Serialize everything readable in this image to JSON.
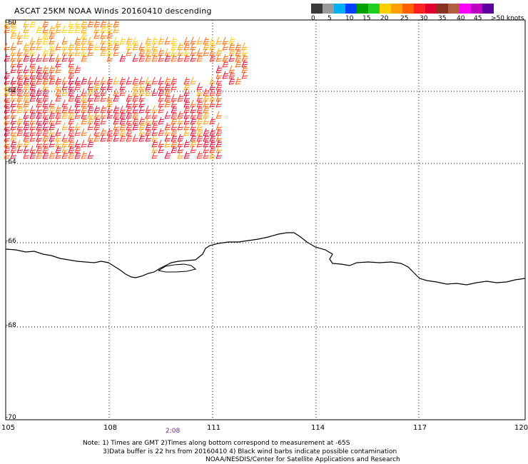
{
  "header": {
    "title": "ASCAT 25KM NOAA Winds 20160410 descending"
  },
  "color_scale": {
    "colors": [
      "#3a3a3a",
      "#9a9a9a",
      "#00b0f0",
      "#0040ff",
      "#00a000",
      "#20d020",
      "#ffd000",
      "#ffa000",
      "#ff6000",
      "#ff2020",
      "#e00030",
      "#8a3020",
      "#b06040",
      "#ff00ff",
      "#c000c0",
      "#6000a0"
    ],
    "tick_labels": [
      "0",
      "5",
      "10",
      "15",
      "20",
      "25",
      "30",
      "35",
      "40",
      "45"
    ],
    "end_label": ">50 knots"
  },
  "map": {
    "lon_labels": [
      "105",
      "108",
      "111",
      "114",
      "117",
      "120"
    ],
    "lat_labels": [
      "-60",
      "-62",
      "-64",
      "-66",
      "-68",
      "-70"
    ],
    "time_label": "2:08",
    "coastline_color": "#000000",
    "barb_colors": [
      "#ff2020",
      "#e00030",
      "#ff6000",
      "#ffa000",
      "#ffd000"
    ]
  },
  "notes": {
    "line1": "Note: 1) Times are GMT 2)Times along bottom correspond to measurement at -65S",
    "line2": "3)Data buffer is 22 hrs from 20160410 4) Black wind barbs indicate possible contamination",
    "line3": "NOAA/NESDIS/Center for Satellite Applications and Research"
  }
}
